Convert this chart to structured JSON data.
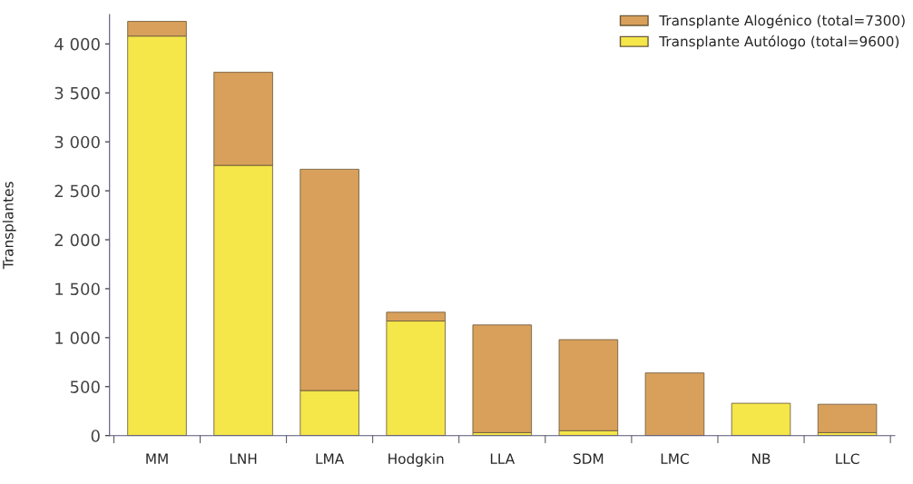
{
  "chart_data": {
    "type": "bar",
    "stacked": true,
    "ylabel": "Transplantes",
    "categories": [
      "MM",
      "LNH",
      "LMA",
      "Hodgkin",
      "LLA",
      "SDM",
      "LMC",
      "NB",
      "LLC"
    ],
    "series": [
      {
        "name": "Transplante Autólogo (total=9600)",
        "color": "#f5e64a",
        "values": [
          4080,
          2760,
          460,
          1170,
          30,
          50,
          null,
          330,
          30
        ]
      },
      {
        "name": "Transplante Alogénico (total=7300)",
        "color": "#d9a05b",
        "values": [
          150,
          950,
          2260,
          90,
          1100,
          930,
          640,
          null,
          290
        ]
      }
    ],
    "ylim": [
      0,
      4300
    ],
    "yticks": [
      0,
      500,
      {
        "value": 1000,
        "label": "1 000"
      },
      {
        "value": 1500,
        "label": "1 500"
      },
      {
        "value": 2000,
        "label": "2 000"
      },
      {
        "value": 2500,
        "label": "2 500"
      },
      {
        "value": 3000,
        "label": "3 000"
      },
      {
        "value": 3500,
        "label": "3 500"
      },
      {
        "value": 4000,
        "label": "4 000"
      }
    ],
    "grid": false,
    "legend": "top right"
  }
}
